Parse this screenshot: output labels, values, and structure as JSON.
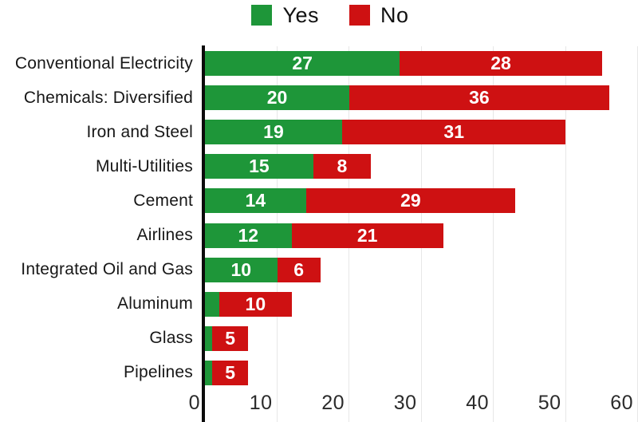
{
  "legend": {
    "items": [
      {
        "label": "Yes",
        "color": "#1e9639"
      },
      {
        "label": "No",
        "color": "#ce1112"
      }
    ]
  },
  "chart_data": {
    "type": "bar",
    "orientation": "horizontal",
    "stacked": true,
    "title": "",
    "xlabel": "",
    "ylabel": "",
    "categories": [
      "Conventional Electricity",
      "Chemicals: Diversified",
      "Iron and Steel",
      "Multi-Utilities",
      "Cement",
      "Airlines",
      "Integrated Oil and Gas",
      "Aluminum",
      "Glass",
      "Pipelines"
    ],
    "series": [
      {
        "name": "Yes",
        "color": "#1e9639",
        "values": [
          27,
          20,
          19,
          15,
          14,
          12,
          10,
          2,
          1,
          1
        ]
      },
      {
        "name": "No",
        "color": "#ce1112",
        "values": [
          28,
          36,
          31,
          8,
          29,
          21,
          6,
          10,
          5,
          5
        ]
      }
    ],
    "xlim": [
      0,
      60
    ],
    "x_ticks": [
      0,
      10,
      20,
      30,
      40,
      50,
      60
    ],
    "grid": "vertical-gridlines-every-10",
    "gridline_color": "#e7e7e7",
    "axis_line_color": "#0b0b0b",
    "bar_label_color": "#ffffff",
    "bar_label_min_value": 5,
    "legend_position": "top-center"
  }
}
